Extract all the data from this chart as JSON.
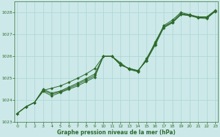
{
  "title": "Graphe pression niveau de la mer (hPa)",
  "hours": [
    0,
    1,
    2,
    3,
    4,
    5,
    6,
    7,
    8,
    9,
    10,
    11,
    12,
    13,
    14,
    15,
    16,
    17,
    18,
    19,
    20,
    21,
    22,
    23
  ],
  "series": [
    [
      1023.4,
      1023.7,
      1023.9,
      1024.4,
      1024.2,
      1024.35,
      1024.5,
      1024.65,
      1024.85,
      1025.05,
      1026.0,
      1026.0,
      1025.7,
      1025.4,
      1025.3,
      1025.9,
      1026.6,
      1027.4,
      1027.65,
      1028.0,
      1027.9,
      1027.8,
      1027.8,
      1028.1
    ],
    [
      1023.4,
      1023.7,
      1023.9,
      1024.45,
      1024.28,
      1024.38,
      1024.55,
      1024.72,
      1024.92,
      1025.12,
      1026.0,
      1026.0,
      1025.65,
      1025.42,
      1025.32,
      1025.85,
      1026.55,
      1027.35,
      1027.58,
      1027.95,
      1027.88,
      1027.78,
      1027.78,
      1028.08
    ],
    [
      1023.4,
      1023.7,
      1023.9,
      1024.5,
      1024.33,
      1024.42,
      1024.6,
      1024.78,
      1024.98,
      1025.2,
      1026.0,
      1026.0,
      1025.6,
      1025.45,
      1025.35,
      1025.8,
      1026.5,
      1027.3,
      1027.52,
      1027.9,
      1027.85,
      1027.75,
      1027.72,
      1028.05
    ],
    [
      1023.4,
      1023.7,
      1023.9,
      1024.45,
      1024.55,
      1024.65,
      1024.82,
      1025.0,
      1025.2,
      1025.45,
      1026.0,
      1026.0,
      1025.6,
      1025.45,
      1025.35,
      1025.8,
      1026.65,
      1027.35,
      1027.55,
      1027.9,
      1027.88,
      1027.78,
      1027.75,
      1028.07
    ]
  ],
  "line_color": "#2d6a2d",
  "bg_color": "#cce8e8",
  "grid_color": "#a8d5d5",
  "text_color": "#2d6a2d",
  "ylim": [
    1023.0,
    1028.5
  ],
  "yticks": [
    1023,
    1024,
    1025,
    1026,
    1027,
    1028
  ],
  "xlim": [
    -0.3,
    23.3
  ],
  "xticks": [
    0,
    1,
    2,
    3,
    4,
    5,
    6,
    7,
    8,
    9,
    10,
    11,
    12,
    13,
    14,
    15,
    16,
    17,
    18,
    19,
    20,
    21,
    22,
    23
  ],
  "tick_fontsize": 4.5,
  "label_fontsize": 5.5,
  "linewidth": 0.75,
  "markersize": 2.0
}
